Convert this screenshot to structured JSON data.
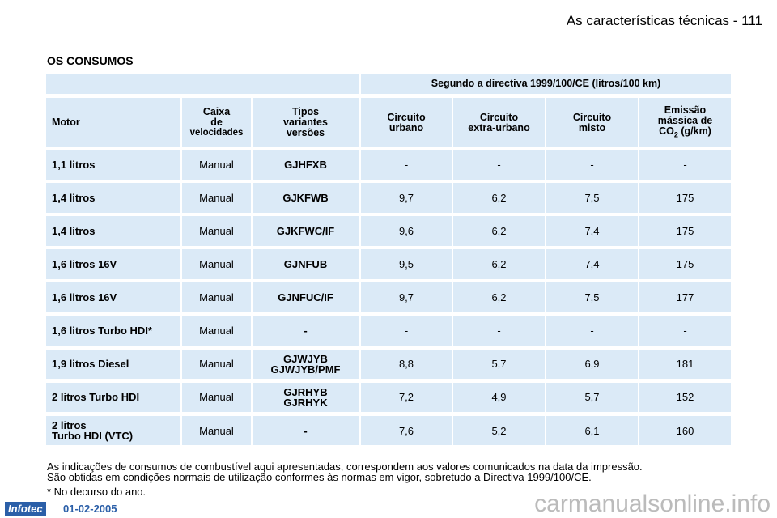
{
  "header": {
    "title": "As características técnicas - 111"
  },
  "section": {
    "title": "OS CONSUMOS"
  },
  "table": {
    "group_header": "Segundo a directiva 1999/100/CE (litros/100 km)",
    "columns": [
      "Motor",
      "Caixa\nde",
      "Tipos\nvariantes\nversões",
      "Circuito\nurbano",
      "Circuito\nextra-urbano",
      "Circuito\nmisto"
    ],
    "caixa_sub": "velocidades",
    "emissao": {
      "line1": "Emissão",
      "line2": "mássica de",
      "co": "CO",
      "sub": "2",
      "unit": " (g/km)"
    },
    "rows": [
      [
        "1,1 litros",
        "Manual",
        "GJHFXB",
        "-",
        "-",
        "-",
        "-"
      ],
      [
        "1,4 litros",
        "Manual",
        "GJKFWB",
        "9,7",
        "6,2",
        "7,5",
        "175"
      ],
      [
        "1,4 litros",
        "Manual",
        "GJKFWC/IF",
        "9,6",
        "6,2",
        "7,4",
        "175"
      ],
      [
        "1,6 litros 16V",
        "Manual",
        "GJNFUB",
        "9,5",
        "6,2",
        "7,4",
        "175"
      ],
      [
        "1,6 litros 16V",
        "Manual",
        "GJNFUC/IF",
        "9,7",
        "6,2",
        "7,5",
        "177"
      ],
      [
        "1,6 litros Turbo HDI*",
        "Manual",
        "-",
        "-",
        "-",
        "-",
        "-"
      ],
      [
        "1,9 litros Diesel",
        "Manual",
        "GJWJYB\nGJWJYB/PMF",
        "8,8",
        "5,7",
        "6,9",
        "181"
      ],
      [
        "2 litros Turbo HDI",
        "Manual",
        "GJRHYB\nGJRHYK",
        "7,2",
        "4,9",
        "5,7",
        "152"
      ],
      [
        "2 litros\nTurbo HDI (VTC)",
        "Manual",
        "-",
        "7,6",
        "5,2",
        "6,1",
        "160"
      ]
    ]
  },
  "notes": {
    "text": "As indicações de consumos de combustível aqui apresentadas, correspondem aos valores comunicados na data da impressão.\nSão obtidas em condições normais de utilização conformes às normas em vigor, sobretudo a Directiva 1999/100/CE.",
    "footnote": "*  No decurso do ano."
  },
  "footer": {
    "logo": "Infotec",
    "date": "01-02-2005",
    "watermark": "carmanualsonline.info"
  }
}
